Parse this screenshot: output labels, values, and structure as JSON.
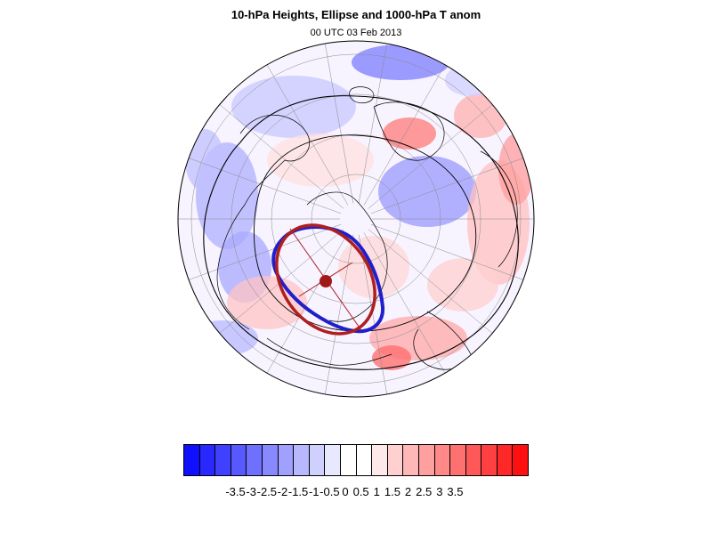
{
  "title": "10-hPa Heights, Ellipse and 1000-hPa T anom",
  "subtitle": "00 UTC 03 Feb 2013",
  "colors": {
    "cold": "#1a1aff",
    "warm": "#ff1a1a",
    "ellipse_fit": "#b01e1e",
    "vortex_contour": "#1f1fcc",
    "coastline": "#000000",
    "gridline": "#888888",
    "height_contour": "#000000"
  },
  "colorbar": {
    "swatches": [
      "#1010ff",
      "#2828ff",
      "#4040ff",
      "#5858ff",
      "#7070ff",
      "#8888ff",
      "#a0a0ff",
      "#b8b8ff",
      "#d0d0ff",
      "#e8e8ff",
      "#ffffff",
      "#ffffff",
      "#ffe8e8",
      "#ffd0d0",
      "#ffb8b8",
      "#ffa0a0",
      "#ff8888",
      "#ff7070",
      "#ff5858",
      "#ff4040",
      "#ff2828",
      "#ff1010"
    ],
    "tick_labels": [
      "-3.5",
      "-3",
      "-2.5",
      "-2",
      "-1.5",
      "-1",
      "-0.5",
      "0",
      "0.5",
      "1",
      "1.5",
      "2",
      "2.5",
      "3",
      "3.5"
    ]
  },
  "map": {
    "projection": "polar-stereographic-north",
    "ellipse_center_marker": "filled-circle"
  }
}
